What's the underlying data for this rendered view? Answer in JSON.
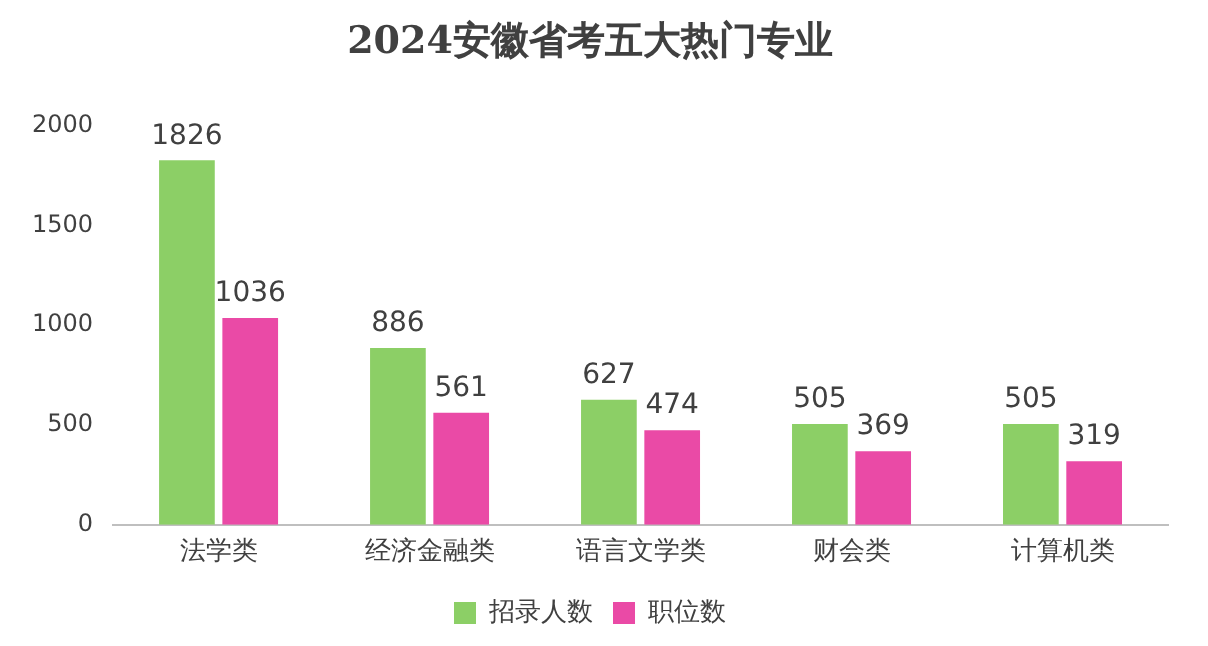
{
  "chart_data": {
    "type": "bar",
    "title": "2024安徽省考五大热门专业",
    "categories": [
      "法学类",
      "经济金融类",
      "语言文学类",
      "财会类",
      "计算机类"
    ],
    "series": [
      {
        "name": "招录人数",
        "color": "#8ccf66",
        "values": [
          1826,
          886,
          627,
          505,
          505
        ]
      },
      {
        "name": "职位数",
        "color": "#ea4aa6",
        "values": [
          1036,
          561,
          474,
          369,
          319
        ]
      }
    ],
    "ylim": [
      0,
      2000
    ],
    "yticks": [
      0,
      500,
      1000,
      1500,
      2000
    ],
    "grid": false,
    "legend": "bottom",
    "data_labels": true
  }
}
